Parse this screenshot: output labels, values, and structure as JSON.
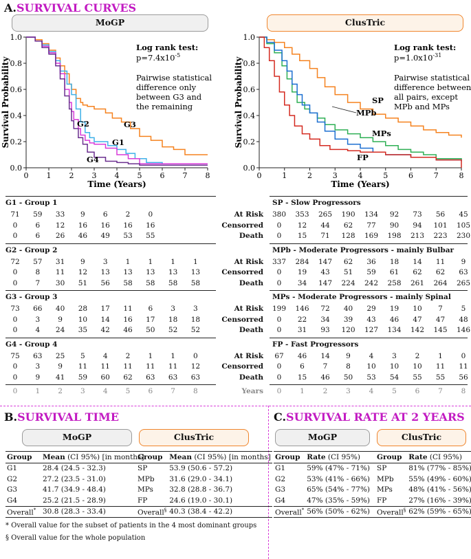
{
  "sectionA": {
    "letter": "A.",
    "title": "SURVIVAL CURVES"
  },
  "sectionB": {
    "letter": "B.",
    "title": "SURVIVAL TIME"
  },
  "sectionC": {
    "letter": "C.",
    "title": "SURVIVAL RATE AT 2 YEARS"
  },
  "labels": {
    "mogp": "MoGP",
    "clustric": "ClusTric"
  },
  "colors": {
    "orange": "#f5821f",
    "lightblue": "#3fb1e8",
    "purple": "#6b2f8f",
    "magenta": "#d83ad9",
    "red": "#d42a20",
    "blue": "#1c6fd1",
    "green": "#2eaf54",
    "pill_border_orange": "#f0852c"
  },
  "chart_data": [
    {
      "type": "line",
      "title": "MoGP",
      "xlabel": "Time (Years)",
      "ylabel": "Survival Probability",
      "xlim": [
        0,
        8
      ],
      "ylim": [
        0,
        1.0
      ],
      "xticks": [
        "0",
        "1",
        "2",
        "3",
        "4",
        "5",
        "6",
        "7",
        "8"
      ],
      "yticks": [
        "0.0",
        "0.2",
        "0.4",
        "0.6",
        "0.8",
        "1.0"
      ],
      "annotation": {
        "title": "Log rank test:",
        "pvalue_base": "p=7.4x10",
        "pvalue_exp": "-5",
        "text": [
          "Pairwise statistical",
          "difference only",
          "between G3 and",
          "the remaining"
        ]
      },
      "series": [
        {
          "name": "G3",
          "color": "#f5821f",
          "x": [
            0,
            0.4,
            0.7,
            1.0,
            1.3,
            1.5,
            1.7,
            1.9,
            2.0,
            2.2,
            2.4,
            2.5,
            2.7,
            3.0,
            3.5,
            3.8,
            4.2,
            4.6,
            5.0,
            5.5,
            6.0,
            6.5,
            7.0,
            8.0
          ],
          "y": [
            1.0,
            0.98,
            0.95,
            0.9,
            0.84,
            0.78,
            0.72,
            0.64,
            0.6,
            0.53,
            0.5,
            0.48,
            0.47,
            0.45,
            0.42,
            0.38,
            0.35,
            0.3,
            0.24,
            0.21,
            0.16,
            0.14,
            0.1,
            0.1
          ]
        },
        {
          "name": "G1",
          "color": "#3fb1e8",
          "x": [
            0,
            0.4,
            0.7,
            1.0,
            1.3,
            1.5,
            1.8,
            2.0,
            2.2,
            2.4,
            2.6,
            2.8,
            3.0,
            3.3,
            3.6,
            4.0,
            4.4,
            4.8,
            5.3,
            6.0,
            8.0
          ],
          "y": [
            1.0,
            0.97,
            0.94,
            0.89,
            0.82,
            0.74,
            0.64,
            0.56,
            0.45,
            0.35,
            0.27,
            0.23,
            0.2,
            0.2,
            0.17,
            0.14,
            0.11,
            0.07,
            0.04,
            0.03,
            0.03
          ]
        },
        {
          "name": "G2",
          "color": "#d83ad9",
          "x": [
            0,
            0.4,
            0.7,
            1.0,
            1.3,
            1.5,
            1.7,
            1.9,
            2.0,
            2.1,
            2.3,
            2.4,
            2.6,
            2.8,
            3.0,
            3.5,
            4.0,
            4.5,
            5.0,
            6.0,
            8.0
          ],
          "y": [
            1.0,
            0.97,
            0.93,
            0.88,
            0.8,
            0.72,
            0.6,
            0.5,
            0.43,
            0.37,
            0.3,
            0.25,
            0.21,
            0.19,
            0.18,
            0.15,
            0.1,
            0.07,
            0.03,
            0.03,
            0.03
          ]
        },
        {
          "name": "G4",
          "color": "#6b2f8f",
          "x": [
            0,
            0.4,
            0.7,
            1.0,
            1.3,
            1.5,
            1.7,
            1.9,
            2.0,
            2.1,
            2.3,
            2.5,
            2.7,
            3.0,
            3.5,
            4.0,
            4.5,
            5.0,
            6.0,
            8.0
          ],
          "y": [
            1.0,
            0.97,
            0.92,
            0.87,
            0.78,
            0.68,
            0.55,
            0.45,
            0.36,
            0.3,
            0.23,
            0.18,
            0.12,
            0.08,
            0.05,
            0.04,
            0.03,
            0.02,
            0.02,
            0.02
          ]
        }
      ],
      "series_labels": [
        "G2",
        "G3",
        "G1",
        "G4"
      ]
    },
    {
      "type": "line",
      "title": "ClusTric",
      "xlabel": "Time (Years)",
      "ylabel": "Survival Probability",
      "xlim": [
        0,
        8
      ],
      "ylim": [
        0,
        1.0
      ],
      "xticks": [
        "0",
        "1",
        "2",
        "3",
        "4",
        "5",
        "6",
        "7",
        "8"
      ],
      "yticks": [
        "0.0",
        "0.2",
        "0.4",
        "0.6",
        "0.8",
        "1.0"
      ],
      "annotation": {
        "title": "Log rank test:",
        "pvalue_base": "p=1.0x10",
        "pvalue_exp": "-31",
        "text": [
          "Pairwise statistical",
          "difference between",
          "all pairs, except",
          "MPb and MPs"
        ]
      },
      "series": [
        {
          "name": "SP",
          "color": "#f5821f",
          "x": [
            0,
            0.3,
            0.6,
            1.0,
            1.3,
            1.6,
            2.0,
            2.3,
            2.6,
            3.0,
            3.5,
            4.0,
            4.5,
            5.0,
            5.5,
            6.0,
            6.5,
            7.0,
            7.5,
            8.0
          ],
          "y": [
            1.0,
            0.98,
            0.96,
            0.92,
            0.87,
            0.82,
            0.76,
            0.69,
            0.62,
            0.56,
            0.5,
            0.45,
            0.41,
            0.38,
            0.35,
            0.32,
            0.29,
            0.27,
            0.25,
            0.23
          ]
        },
        {
          "name": "MPs",
          "color": "#2eaf54",
          "x": [
            0,
            0.3,
            0.6,
            0.9,
            1.1,
            1.3,
            1.5,
            1.8,
            2.0,
            2.3,
            2.6,
            3.0,
            3.5,
            4.0,
            4.5,
            5.0,
            5.5,
            6.0,
            6.5,
            7.0,
            8.0
          ],
          "y": [
            1.0,
            0.95,
            0.88,
            0.78,
            0.68,
            0.58,
            0.5,
            0.45,
            0.42,
            0.38,
            0.33,
            0.29,
            0.26,
            0.23,
            0.2,
            0.17,
            0.14,
            0.12,
            0.1,
            0.07,
            0.06
          ]
        },
        {
          "name": "MPb",
          "color": "#1c6fd1",
          "x": [
            0,
            0.3,
            0.6,
            0.9,
            1.1,
            1.3,
            1.5,
            1.7,
            2.0,
            2.3,
            2.6,
            3.0,
            3.5,
            4.0,
            4.5,
            5.0,
            6.0,
            7.0,
            8.0
          ],
          "y": [
            1.0,
            0.96,
            0.9,
            0.82,
            0.74,
            0.64,
            0.56,
            0.48,
            0.42,
            0.35,
            0.28,
            0.22,
            0.18,
            0.15,
            0.12,
            0.1,
            0.08,
            0.06,
            0.05
          ]
        },
        {
          "name": "FP",
          "color": "#d42a20",
          "x": [
            0,
            0.2,
            0.4,
            0.6,
            0.8,
            1.0,
            1.2,
            1.4,
            1.7,
            2.0,
            2.4,
            2.8,
            3.5,
            4.0,
            5.0,
            6.0,
            7.0,
            7.9,
            8.0
          ],
          "y": [
            1.0,
            0.92,
            0.82,
            0.7,
            0.58,
            0.48,
            0.4,
            0.32,
            0.26,
            0.22,
            0.17,
            0.14,
            0.13,
            0.12,
            0.1,
            0.08,
            0.06,
            0.06,
            0.0
          ]
        }
      ],
      "series_labels": [
        "SP",
        "MPb",
        "MPs",
        "FP"
      ]
    }
  ],
  "risk_tables": {
    "row_labels": [
      "At Risk",
      "Censorred",
      "Death"
    ],
    "years_label": "Years",
    "years": [
      "0",
      "1",
      "2",
      "3",
      "4",
      "5",
      "6",
      "7",
      "8"
    ],
    "left": [
      {
        "title": "G1 - Group 1",
        "rows": [
          [
            "71",
            "59",
            "33",
            "9",
            "6",
            "2",
            "0",
            "",
            ""
          ],
          [
            "0",
            "6",
            "12",
            "16",
            "16",
            "16",
            "16",
            "",
            ""
          ],
          [
            "0",
            "6",
            "26",
            "46",
            "49",
            "53",
            "55",
            "",
            ""
          ]
        ]
      },
      {
        "title": "G2 - Group 2",
        "rows": [
          [
            "72",
            "57",
            "31",
            "9",
            "3",
            "1",
            "1",
            "1",
            "1"
          ],
          [
            "0",
            "8",
            "11",
            "12",
            "13",
            "13",
            "13",
            "13",
            "13"
          ],
          [
            "0",
            "7",
            "30",
            "51",
            "56",
            "58",
            "58",
            "58",
            "58"
          ]
        ]
      },
      {
        "title": "G3 - Group 3",
        "rows": [
          [
            "73",
            "66",
            "40",
            "28",
            "17",
            "11",
            "6",
            "3",
            "3"
          ],
          [
            "0",
            "3",
            "9",
            "10",
            "14",
            "16",
            "17",
            "18",
            "18"
          ],
          [
            "0",
            "4",
            "24",
            "35",
            "42",
            "46",
            "50",
            "52",
            "52"
          ]
        ]
      },
      {
        "title": "G4 - Group 4",
        "rows": [
          [
            "75",
            "63",
            "25",
            "5",
            "4",
            "2",
            "1",
            "1",
            "0"
          ],
          [
            "0",
            "3",
            "9",
            "11",
            "11",
            "11",
            "11",
            "11",
            "12"
          ],
          [
            "0",
            "9",
            "41",
            "59",
            "60",
            "62",
            "63",
            "63",
            "63"
          ]
        ]
      }
    ],
    "right": [
      {
        "title": "SP - Slow Progressors",
        "rows": [
          [
            "380",
            "353",
            "265",
            "190",
            "134",
            "92",
            "73",
            "56",
            "45"
          ],
          [
            "0",
            "12",
            "44",
            "62",
            "77",
            "90",
            "94",
            "101",
            "105"
          ],
          [
            "0",
            "15",
            "71",
            "128",
            "169",
            "198",
            "213",
            "223",
            "230"
          ]
        ]
      },
      {
        "title": "MPb - Moderate Progressors - mainly Bulbar",
        "rows": [
          [
            "337",
            "284",
            "147",
            "62",
            "36",
            "18",
            "14",
            "11",
            "9"
          ],
          [
            "0",
            "19",
            "43",
            "51",
            "59",
            "61",
            "62",
            "62",
            "63"
          ],
          [
            "0",
            "34",
            "147",
            "224",
            "242",
            "258",
            "261",
            "264",
            "265"
          ]
        ]
      },
      {
        "title": "MPs - Moderate Progressors - mainly Spinal",
        "rows": [
          [
            "199",
            "146",
            "72",
            "40",
            "29",
            "19",
            "10",
            "7",
            "5"
          ],
          [
            "0",
            "22",
            "34",
            "39",
            "43",
            "46",
            "47",
            "47",
            "48"
          ],
          [
            "0",
            "31",
            "93",
            "120",
            "127",
            "134",
            "142",
            "145",
            "146"
          ]
        ]
      },
      {
        "title": "FP - Fast Progressors",
        "rows": [
          [
            "67",
            "46",
            "14",
            "9",
            "4",
            "3",
            "2",
            "1",
            "0"
          ],
          [
            "0",
            "6",
            "7",
            "8",
            "10",
            "10",
            "10",
            "11",
            "11"
          ],
          [
            "0",
            "15",
            "46",
            "50",
            "53",
            "54",
            "55",
            "55",
            "56"
          ]
        ]
      }
    ]
  },
  "survival_time": {
    "mogp": {
      "col1": "Group",
      "col2_bold": "Mean",
      "col2_rest": " (CI 95%) [in months]",
      "rows": [
        [
          "G1",
          "28.4 (24.5 - 32.3)"
        ],
        [
          "G2",
          "27.2 (23.5 - 31.0)"
        ],
        [
          "G3",
          "41.7 (34.9 - 48.4)"
        ],
        [
          "G4",
          "25.2 (21.5 - 28.9)"
        ]
      ],
      "overall_label": "Overall*",
      "overall_value": "30.8 (28.3 - 33.4)"
    },
    "clustric": {
      "col1": "Group",
      "col2_bold": "Mean",
      "col2_rest": " (CI 95%) [in months]",
      "rows": [
        [
          "SP",
          "53.9 (50.6 - 57.2)"
        ],
        [
          "MPb",
          "31.6 (29.0 - 34.1)"
        ],
        [
          "MPs",
          "32.8 (28.8 - 36.7)"
        ],
        [
          "FP",
          "24.6 (19.0 - 30.1)"
        ]
      ],
      "overall_label": "Overall§",
      "overall_value": "40.3 (38.4 - 42.2)"
    }
  },
  "survival_rate": {
    "mogp": {
      "col1": "Group",
      "col2_bold": "Rate",
      "col2_rest": " (CI 95%)",
      "rows": [
        [
          "G1",
          "59% (47% - 71%)"
        ],
        [
          "G2",
          "53% (41% - 66%)"
        ],
        [
          "G3",
          "65% (54% - 77%)"
        ],
        [
          "G4",
          "47% (35% - 59%)"
        ]
      ],
      "overall_label": "Overall*",
      "overall_value": "56% (50% - 62%)"
    },
    "clustric": {
      "col1": "Group",
      "col2_bold": "Rate",
      "col2_rest": " (CI 95%)",
      "rows": [
        [
          "SP",
          "81% (77% - 85%)"
        ],
        [
          "MPb",
          "55% (49% - 60%)"
        ],
        [
          "MPs",
          "48% (41% - 56%)"
        ],
        [
          "FP",
          "27% (16% - 39%)"
        ]
      ],
      "overall_label": "Overall§",
      "overall_value": "62% (59% - 65%)"
    }
  },
  "footnotes": [
    "* Overall value for the subset of  patients in the 4 most dominant groups",
    "§ Overall value for the whole population"
  ]
}
